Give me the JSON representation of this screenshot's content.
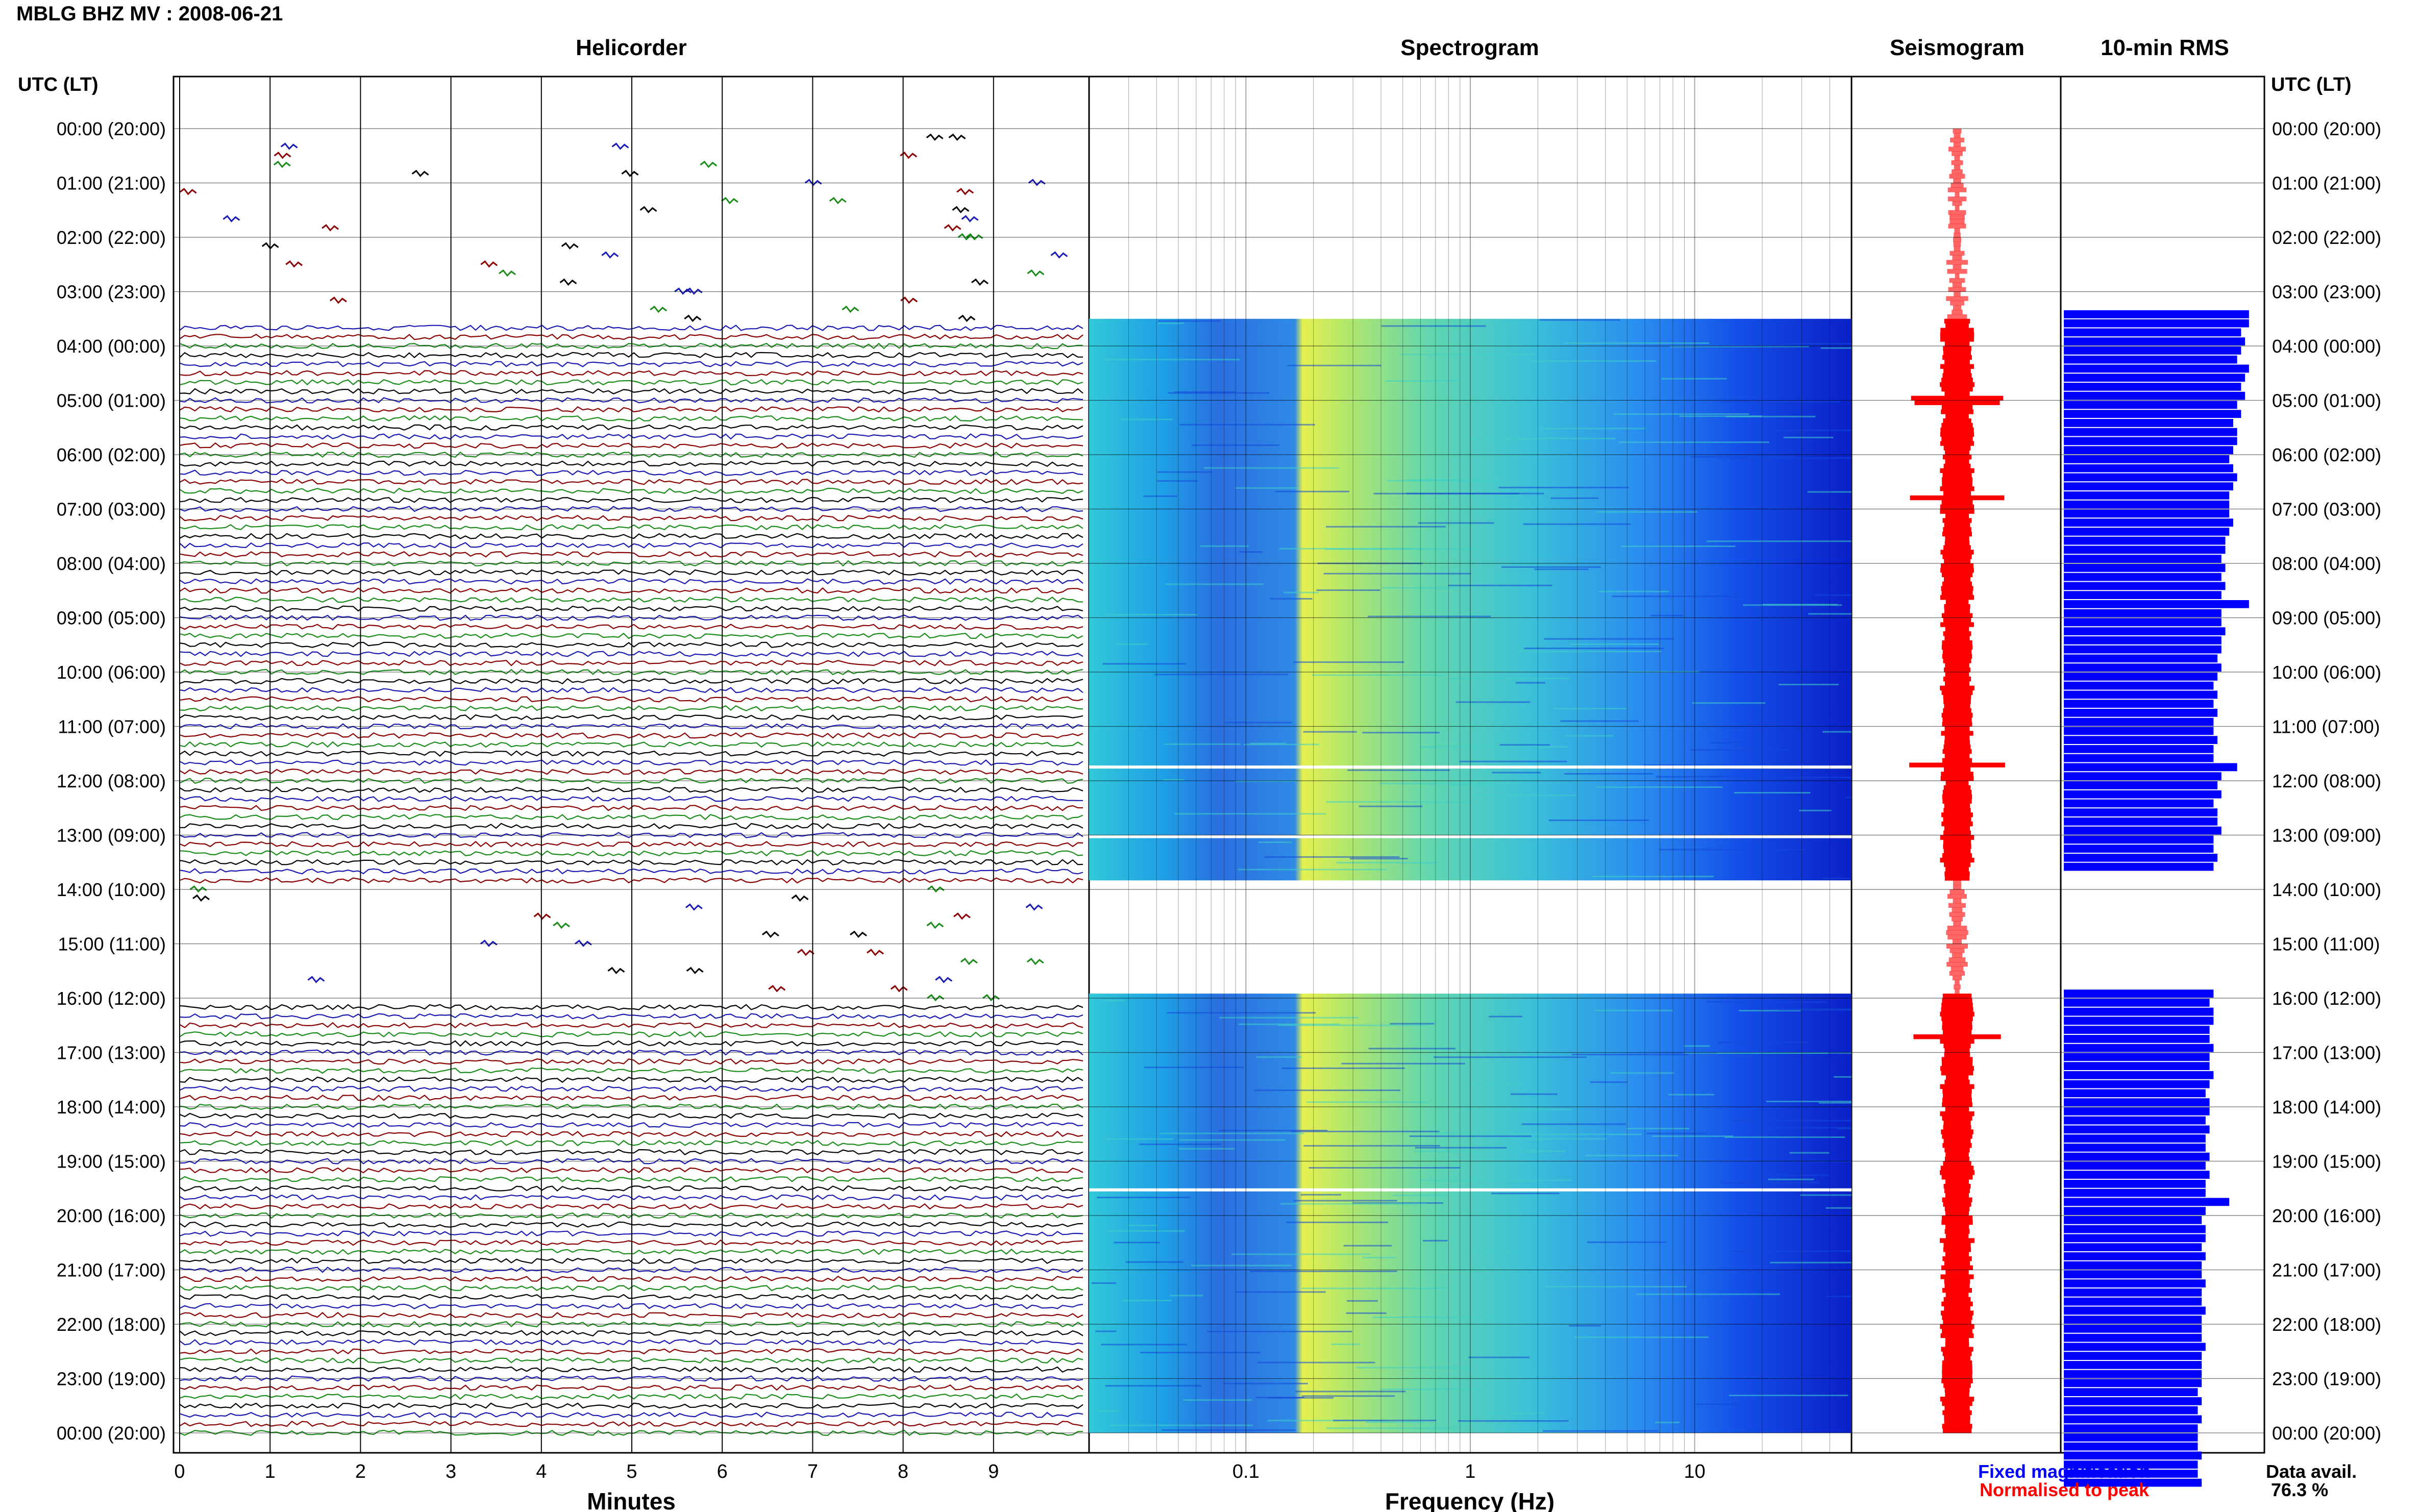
{
  "header": {
    "title": "MBLG BHZ MV : 2008-06-21"
  },
  "panels": {
    "helicorder": "Helicorder",
    "spectrogram": "Spectrogram",
    "seismogram": "Seismogram",
    "rms": "10-min RMS"
  },
  "axes": {
    "time_label_left": "UTC (LT)",
    "time_label_right": "UTC (LT)",
    "minutes_label": "Minutes",
    "frequency_label": "Frequency (Hz)"
  },
  "legend": {
    "fixed": "Fixed magnification",
    "normalised": "Normalised to peak",
    "data_avail_label": "Data avail.",
    "data_avail_value": "76.3 %"
  },
  "colors": {
    "trace_cycle": [
      "#000000",
      "#1a1ab4",
      "#8b0000",
      "#1a8c1a"
    ],
    "rms": "#0000ff",
    "seismogram": "#ff0000",
    "legend_fixed": "#0000ff",
    "legend_normalised": "#ff0000"
  },
  "chart_data": {
    "type": "heatmap",
    "title": "MBLG BHZ MV : 2008-06-21",
    "time_ticks": [
      "00:00 (20:00)",
      "01:00 (21:00)",
      "02:00 (22:00)",
      "03:00 (23:00)",
      "04:00 (00:00)",
      "05:00 (01:00)",
      "06:00 (02:00)",
      "07:00 (03:00)",
      "08:00 (04:00)",
      "09:00 (05:00)",
      "10:00 (06:00)",
      "11:00 (07:00)",
      "12:00 (08:00)",
      "13:00 (09:00)",
      "14:00 (10:00)",
      "15:00 (11:00)",
      "16:00 (12:00)",
      "17:00 (13:00)",
      "18:00 (14:00)",
      "19:00 (15:00)",
      "20:00 (16:00)",
      "21:00 (17:00)",
      "22:00 (18:00)",
      "23:00 (19:00)",
      "00:00 (20:00)"
    ],
    "minute_ticks": [
      "0",
      "1",
      "2",
      "3",
      "4",
      "5",
      "6",
      "7",
      "8",
      "9"
    ],
    "xlim_minutes": [
      0,
      10
    ],
    "frequency_ticks": [
      "0.1",
      "1",
      "10"
    ],
    "frequency_scale": "log",
    "xlim_frequency_hz": [
      0.02,
      50
    ],
    "data_gaps_utc": [
      [
        "00:00",
        "03:30"
      ],
      [
        "13:50",
        "15:55"
      ]
    ],
    "rms_values": [
      0,
      0,
      0,
      0,
      0,
      0,
      0,
      0,
      0,
      0,
      0,
      0,
      0,
      0,
      0,
      0,
      0,
      0,
      0,
      0,
      0.47,
      0.47,
      0.45,
      0.46,
      0.45,
      0.44,
      0.47,
      0.46,
      0.45,
      0.46,
      0.44,
      0.45,
      0.43,
      0.44,
      0.44,
      0.43,
      0.42,
      0.43,
      0.44,
      0.43,
      0.42,
      0.42,
      0.42,
      0.43,
      0.42,
      0.41,
      0.41,
      0.4,
      0.41,
      0.4,
      0.41,
      0.4,
      0.47,
      0.4,
      0.4,
      0.41,
      0.4,
      0.4,
      0.39,
      0.4,
      0.39,
      0.38,
      0.39,
      0.38,
      0.39,
      0.38,
      0.38,
      0.39,
      0.38,
      0.38,
      0.44,
      0.4,
      0.39,
      0.4,
      0.38,
      0.39,
      0.39,
      0.4,
      0.38,
      0.38,
      0.39,
      0.38,
      0.0,
      0.0,
      0,
      0,
      0,
      0,
      0,
      0,
      0,
      0,
      0,
      0,
      0,
      0.38,
      0.37,
      0.38,
      0.38,
      0.37,
      0.37,
      0.38,
      0.37,
      0.37,
      0.38,
      0.37,
      0.36,
      0.37,
      0.37,
      0.36,
      0.37,
      0.36,
      0.36,
      0.37,
      0.36,
      0.37,
      0.36,
      0.36,
      0.42,
      0.36,
      0.35,
      0.36,
      0.36,
      0.35,
      0.36,
      0.35,
      0.35,
      0.36,
      0.35,
      0.35,
      0.36,
      0.35,
      0.35,
      0.35,
      0.36,
      0.35,
      0.35,
      0.35,
      0.35,
      0.34,
      0.35,
      0.34,
      0.35,
      0.34,
      0.34,
      0.34,
      0.35,
      0.34,
      0.34,
      0.35
    ]
  }
}
